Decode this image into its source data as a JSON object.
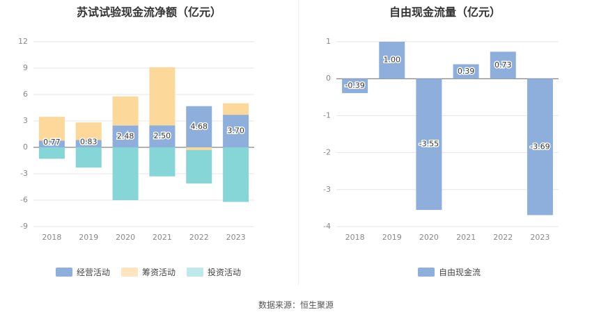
{
  "source": "数据来源：恒生聚源",
  "colors": {
    "operating": "#8eaedc",
    "financing": "#fdd89b",
    "investing": "#86d6d8",
    "fcf": "#8eaedc"
  },
  "chart_data": [
    {
      "type": "bar",
      "stacked": true,
      "title": "苏试试验现金流净额（亿元）",
      "categories": [
        "2018",
        "2019",
        "2020",
        "2021",
        "2022",
        "2023"
      ],
      "series": [
        {
          "name": "经营活动",
          "values": [
            0.77,
            0.83,
            2.48,
            2.5,
            4.68,
            3.7
          ],
          "labels": [
            "0.77",
            "0.83",
            "2.48",
            "2.50",
            "4.68",
            "3.70"
          ]
        },
        {
          "name": "筹资活动",
          "values": [
            2.7,
            2.0,
            3.3,
            6.6,
            -0.3,
            1.3
          ]
        },
        {
          "name": "投资活动",
          "values": [
            -1.3,
            -2.3,
            -6.0,
            -3.3,
            -3.8,
            -6.2
          ]
        }
      ],
      "ylim": [
        -9,
        12
      ],
      "yticks": [
        "12",
        "9",
        "6",
        "3",
        "0",
        "-3",
        "-6",
        "-9"
      ],
      "grid": true,
      "legend_position": "bottom"
    },
    {
      "type": "bar",
      "title": "自由现金流量（亿元）",
      "categories": [
        "2018",
        "2019",
        "2020",
        "2021",
        "2022",
        "2023"
      ],
      "series": [
        {
          "name": "自由现金流",
          "values": [
            -0.39,
            1.0,
            -3.55,
            0.39,
            0.73,
            -3.69
          ],
          "labels": [
            "-0.39",
            "1.00",
            "-3.55",
            "0.39",
            "0.73",
            "-3.69"
          ]
        }
      ],
      "ylim": [
        -4,
        1
      ],
      "yticks": [
        "1",
        "0",
        "-1",
        "-2",
        "-3",
        "-4"
      ],
      "grid": true,
      "legend_position": "bottom"
    }
  ]
}
